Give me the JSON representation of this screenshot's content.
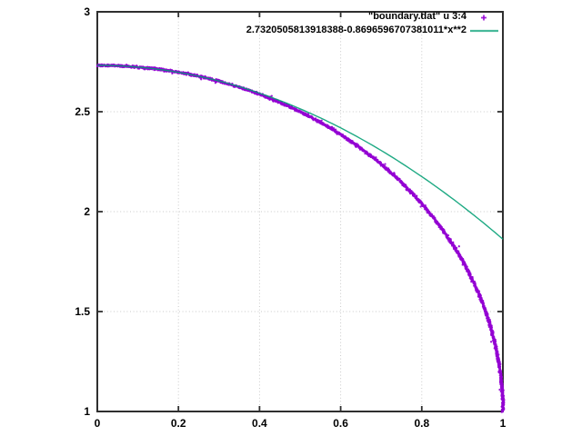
{
  "page": {
    "background": "#ffffff",
    "border_color": "#2f2f2f",
    "grid_color": "#c9c9c9",
    "text_color": "#000000"
  },
  "legend": {
    "position": "top-right-inside",
    "entries": [
      {
        "label": "\"boundary.dat\" u 3:4",
        "sample": "point-marker",
        "color": "#9400d3"
      },
      {
        "label": "2.7320505813918388-0.8696596707381011*x**2",
        "sample": "line",
        "color": "#009e73"
      }
    ]
  },
  "chart_data": {
    "type": "scatter",
    "title": "",
    "xlabel": "",
    "ylabel": "",
    "xlim": [
      0,
      1
    ],
    "ylim": [
      1,
      3
    ],
    "grid": true,
    "ticks_mirrored": true,
    "x_ticks": {
      "values": [
        0,
        0.2,
        0.4,
        0.6,
        0.8,
        1
      ],
      "labels": [
        "0",
        "0.2",
        "0.4",
        "0.6",
        "0.8",
        "1"
      ]
    },
    "y_ticks": {
      "values": [
        1,
        1.5,
        2,
        2.5,
        3
      ],
      "labels": [
        "1",
        "1.5",
        "2",
        "2.5",
        "3"
      ]
    },
    "legend_position": "top-right-inside",
    "series": [
      {
        "name": "\"boundary.dat\" u 3:4",
        "style": "points",
        "color": "#9400d3",
        "model": {
          "form": "y = y0 + a*sqrt(1 - x^2)",
          "y0": 1,
          "a": 1.7320508075688772
        },
        "points": [
          [
            0.0,
            2.732
          ],
          [
            0.05,
            2.73
          ],
          [
            0.1,
            2.723
          ],
          [
            0.15,
            2.712
          ],
          [
            0.2,
            2.697
          ],
          [
            0.25,
            2.677
          ],
          [
            0.3,
            2.652
          ],
          [
            0.35,
            2.622
          ],
          [
            0.4,
            2.587
          ],
          [
            0.45,
            2.547
          ],
          [
            0.5,
            2.5
          ],
          [
            0.55,
            2.446
          ],
          [
            0.6,
            2.386
          ],
          [
            0.65,
            2.316
          ],
          [
            0.7,
            2.237
          ],
          [
            0.75,
            2.146
          ],
          [
            0.8,
            2.039
          ],
          [
            0.85,
            1.912
          ],
          [
            0.9,
            1.755
          ],
          [
            0.95,
            1.541
          ],
          [
            0.98,
            1.345
          ],
          [
            0.99,
            1.244
          ],
          [
            1.0,
            1.0
          ]
        ]
      },
      {
        "name": "2.7320505813918388-0.8696596707381011*x**2",
        "style": "line",
        "color": "#009e73",
        "fit": {
          "intercept": 2.7320505813918388,
          "x2_coefficient": -0.8696596707381011
        },
        "endpoints": [
          [
            0,
            2.732
          ],
          [
            1,
            1.862
          ]
        ]
      }
    ]
  }
}
